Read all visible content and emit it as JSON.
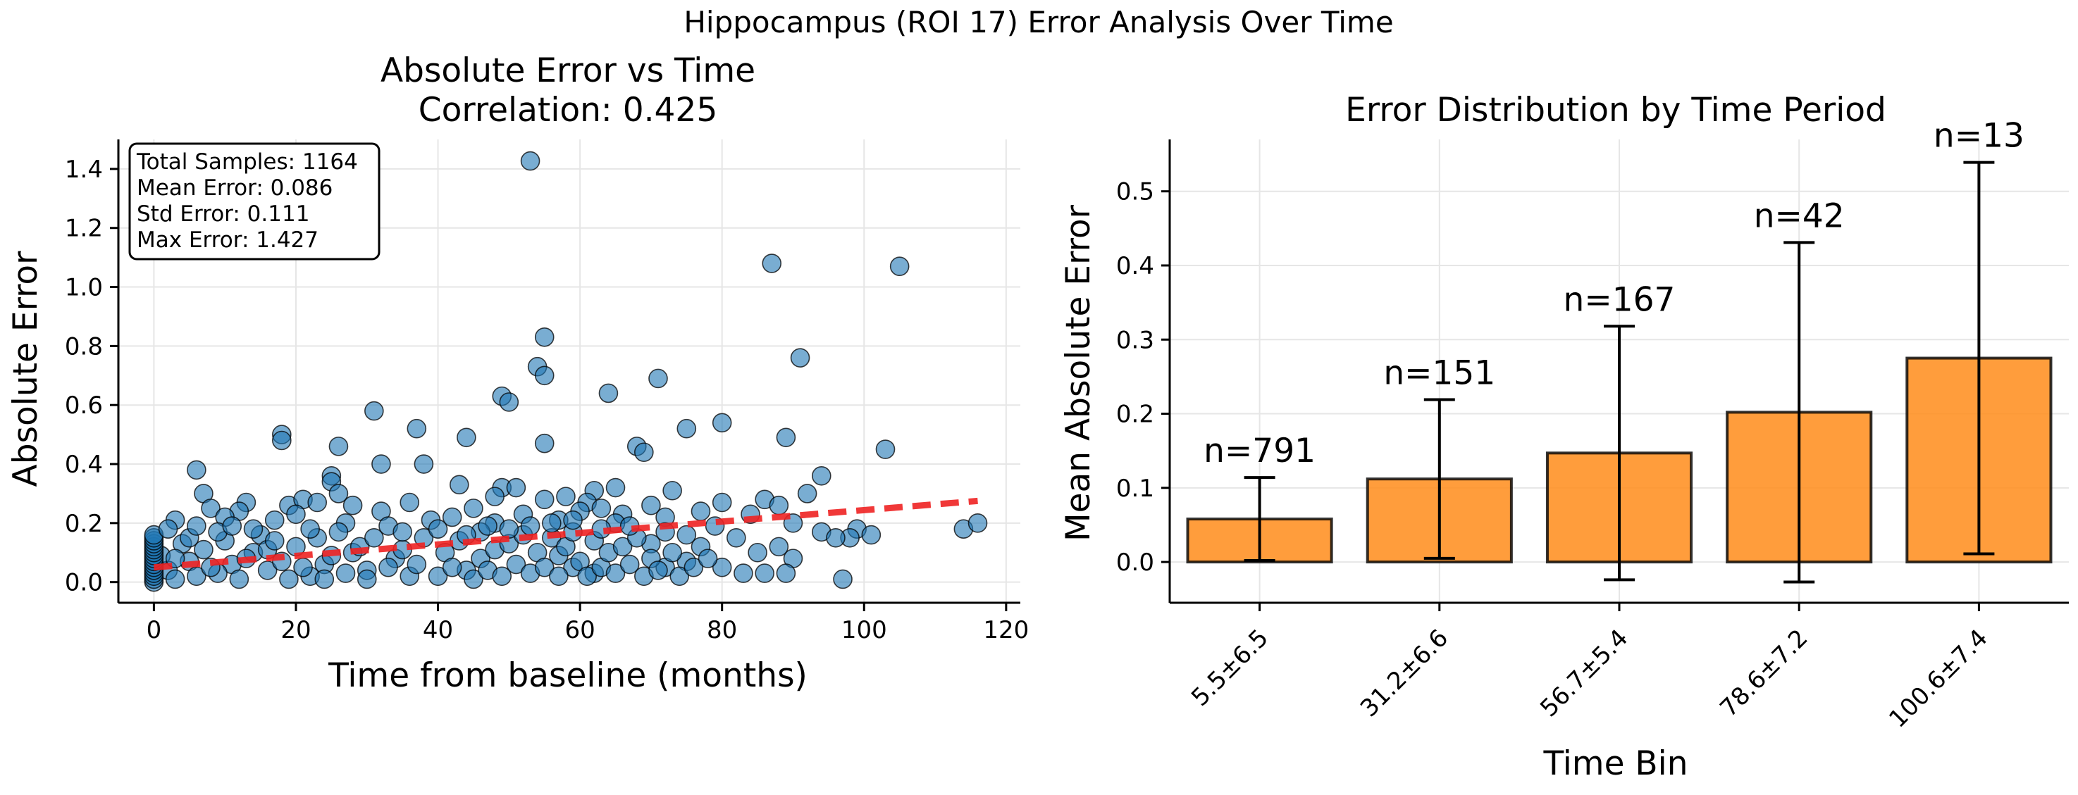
{
  "figure": {
    "suptitle": "Hippocampus (ROI 17) Error Analysis Over Time"
  },
  "colors": {
    "points": "#1f77b4",
    "trend": "#ee2222",
    "bars": "#ff8c1a",
    "bar_edge": "#000000",
    "error_bars": "#000000",
    "grid": "#e6e6e6"
  },
  "chart_data": [
    {
      "type": "scatter",
      "title": "Absolute Error vs Time",
      "subtitle": "Correlation: 0.425",
      "xlabel": "Time from baseline (months)",
      "ylabel": "Absolute Error",
      "xlim": [
        -5,
        122
      ],
      "ylim": [
        -0.07,
        1.5
      ],
      "xticks": [
        0,
        20,
        40,
        60,
        80,
        100,
        120
      ],
      "yticks": [
        0.0,
        0.2,
        0.4,
        0.6,
        0.8,
        1.0,
        1.2,
        1.4
      ],
      "grid": true,
      "stats_box": {
        "location": "top-left",
        "lines": [
          "Total Samples: 1164",
          "Mean Error: 0.086",
          "Std Error: 0.111",
          "Max Error: 1.427"
        ]
      },
      "trend_line": {
        "style": "dashed",
        "x": [
          0,
          116
        ],
        "y": [
          0.05,
          0.275
        ]
      },
      "points": [
        {
          "x": 53,
          "y": 1.427
        },
        {
          "x": 87,
          "y": 1.08
        },
        {
          "x": 105,
          "y": 1.07
        },
        {
          "x": 55,
          "y": 0.83
        },
        {
          "x": 91,
          "y": 0.76
        },
        {
          "x": 54,
          "y": 0.73
        },
        {
          "x": 55,
          "y": 0.7
        },
        {
          "x": 71,
          "y": 0.69
        },
        {
          "x": 64,
          "y": 0.64
        },
        {
          "x": 49,
          "y": 0.63
        },
        {
          "x": 50,
          "y": 0.61
        },
        {
          "x": 31,
          "y": 0.58
        },
        {
          "x": 80,
          "y": 0.54
        },
        {
          "x": 75,
          "y": 0.52
        },
        {
          "x": 37,
          "y": 0.52
        },
        {
          "x": 18,
          "y": 0.5
        },
        {
          "x": 18,
          "y": 0.48
        },
        {
          "x": 44,
          "y": 0.49
        },
        {
          "x": 89,
          "y": 0.49
        },
        {
          "x": 55,
          "y": 0.47
        },
        {
          "x": 26,
          "y": 0.46
        },
        {
          "x": 68,
          "y": 0.46
        },
        {
          "x": 69,
          "y": 0.44
        },
        {
          "x": 103,
          "y": 0.45
        },
        {
          "x": 32,
          "y": 0.4
        },
        {
          "x": 38,
          "y": 0.4
        },
        {
          "x": 6,
          "y": 0.38
        },
        {
          "x": 94,
          "y": 0.36
        },
        {
          "x": 25,
          "y": 0.36
        },
        {
          "x": 25,
          "y": 0.34
        },
        {
          "x": 43,
          "y": 0.33
        },
        {
          "x": 49,
          "y": 0.32
        },
        {
          "x": 51,
          "y": 0.32
        },
        {
          "x": 62,
          "y": 0.31
        },
        {
          "x": 65,
          "y": 0.32
        },
        {
          "x": 73,
          "y": 0.31
        },
        {
          "x": 7,
          "y": 0.3
        },
        {
          "x": 26,
          "y": 0.3
        },
        {
          "x": 48,
          "y": 0.29
        },
        {
          "x": 55,
          "y": 0.28
        },
        {
          "x": 58,
          "y": 0.29
        },
        {
          "x": 86,
          "y": 0.28
        },
        {
          "x": 92,
          "y": 0.3
        },
        {
          "x": 13,
          "y": 0.27
        },
        {
          "x": 19,
          "y": 0.26
        },
        {
          "x": 21,
          "y": 0.28
        },
        {
          "x": 23,
          "y": 0.27
        },
        {
          "x": 28,
          "y": 0.26
        },
        {
          "x": 36,
          "y": 0.27
        },
        {
          "x": 61,
          "y": 0.27
        },
        {
          "x": 70,
          "y": 0.26
        },
        {
          "x": 80,
          "y": 0.27
        },
        {
          "x": 88,
          "y": 0.26
        },
        {
          "x": 8,
          "y": 0.25
        },
        {
          "x": 12,
          "y": 0.24
        },
        {
          "x": 20,
          "y": 0.23
        },
        {
          "x": 32,
          "y": 0.24
        },
        {
          "x": 42,
          "y": 0.22
        },
        {
          "x": 45,
          "y": 0.25
        },
        {
          "x": 52,
          "y": 0.23
        },
        {
          "x": 60,
          "y": 0.24
        },
        {
          "x": 63,
          "y": 0.25
        },
        {
          "x": 66,
          "y": 0.23
        },
        {
          "x": 72,
          "y": 0.22
        },
        {
          "x": 77,
          "y": 0.24
        },
        {
          "x": 84,
          "y": 0.23
        },
        {
          "x": 3,
          "y": 0.21
        },
        {
          "x": 10,
          "y": 0.22
        },
        {
          "x": 17,
          "y": 0.21
        },
        {
          "x": 27,
          "y": 0.2
        },
        {
          "x": 39,
          "y": 0.21
        },
        {
          "x": 48,
          "y": 0.2
        },
        {
          "x": 57,
          "y": 0.21
        },
        {
          "x": 65,
          "y": 0.2
        },
        {
          "x": 79,
          "y": 0.19
        },
        {
          "x": 90,
          "y": 0.2
        },
        {
          "x": 94,
          "y": 0.17
        },
        {
          "x": 99,
          "y": 0.18
        },
        {
          "x": 98,
          "y": 0.15
        },
        {
          "x": 101,
          "y": 0.16
        },
        {
          "x": 114,
          "y": 0.18
        },
        {
          "x": 116,
          "y": 0.2
        },
        {
          "x": 82,
          "y": 0.15
        },
        {
          "x": 85,
          "y": 0.1
        },
        {
          "x": 88,
          "y": 0.12
        },
        {
          "x": 90,
          "y": 0.08
        },
        {
          "x": 96,
          "y": 0.15
        },
        {
          "x": 97,
          "y": 0.01
        },
        {
          "x": 86,
          "y": 0.03
        },
        {
          "x": 89,
          "y": 0.03
        },
        {
          "x": 80,
          "y": 0.05
        },
        {
          "x": 83,
          "y": 0.03
        },
        {
          "x": 75,
          "y": 0.07
        },
        {
          "x": 72,
          "y": 0.05
        },
        {
          "x": 70,
          "y": 0.13
        },
        {
          "x": 74,
          "y": 0.02
        },
        {
          "x": 62,
          "y": 0.03
        },
        {
          "x": 57,
          "y": 0.09
        },
        {
          "x": 59,
          "y": 0.05
        },
        {
          "x": 44,
          "y": 0.04
        },
        {
          "x": 46,
          "y": 0.08
        },
        {
          "x": 34,
          "y": 0.08
        },
        {
          "x": 36,
          "y": 0.02
        },
        {
          "x": 30,
          "y": 0.04
        },
        {
          "x": 28,
          "y": 0.1
        },
        {
          "x": 24,
          "y": 0.06
        },
        {
          "x": 22,
          "y": 0.02
        },
        {
          "x": 16,
          "y": 0.04
        },
        {
          "x": 14,
          "y": 0.1
        },
        {
          "x": 11,
          "y": 0.06
        },
        {
          "x": 9,
          "y": 0.03
        },
        {
          "x": 5,
          "y": 0.07
        },
        {
          "x": 4,
          "y": 0.13
        },
        {
          "x": 2,
          "y": 0.04
        },
        {
          "x": 1,
          "y": 0.09
        },
        {
          "x": 0,
          "y": 0.0
        },
        {
          "x": 0,
          "y": 0.01
        },
        {
          "x": 0,
          "y": 0.02
        },
        {
          "x": 0,
          "y": 0.03
        },
        {
          "x": 0,
          "y": 0.04
        },
        {
          "x": 0,
          "y": 0.05
        },
        {
          "x": 0,
          "y": 0.06
        },
        {
          "x": 0,
          "y": 0.07
        },
        {
          "x": 0,
          "y": 0.08
        },
        {
          "x": 0,
          "y": 0.09
        },
        {
          "x": 0,
          "y": 0.1
        },
        {
          "x": 0,
          "y": 0.11
        },
        {
          "x": 0,
          "y": 0.12
        },
        {
          "x": 0,
          "y": 0.13
        },
        {
          "x": 0,
          "y": 0.14
        },
        {
          "x": 0,
          "y": 0.15
        },
        {
          "x": 0,
          "y": 0.16
        },
        {
          "x": 3,
          "y": 0.01
        },
        {
          "x": 3,
          "y": 0.08
        },
        {
          "x": 5,
          "y": 0.15
        },
        {
          "x": 6,
          "y": 0.02
        },
        {
          "x": 7,
          "y": 0.11
        },
        {
          "x": 8,
          "y": 0.05
        },
        {
          "x": 10,
          "y": 0.14
        },
        {
          "x": 12,
          "y": 0.01
        },
        {
          "x": 13,
          "y": 0.08
        },
        {
          "x": 15,
          "y": 0.16
        },
        {
          "x": 16,
          "y": 0.11
        },
        {
          "x": 18,
          "y": 0.07
        },
        {
          "x": 19,
          "y": 0.01
        },
        {
          "x": 20,
          "y": 0.12
        },
        {
          "x": 21,
          "y": 0.05
        },
        {
          "x": 23,
          "y": 0.15
        },
        {
          "x": 24,
          "y": 0.01
        },
        {
          "x": 25,
          "y": 0.09
        },
        {
          "x": 26,
          "y": 0.17
        },
        {
          "x": 27,
          "y": 0.03
        },
        {
          "x": 29,
          "y": 0.12
        },
        {
          "x": 30,
          "y": 0.01
        },
        {
          "x": 31,
          "y": 0.15
        },
        {
          "x": 33,
          "y": 0.05
        },
        {
          "x": 35,
          "y": 0.11
        },
        {
          "x": 37,
          "y": 0.06
        },
        {
          "x": 38,
          "y": 0.15
        },
        {
          "x": 40,
          "y": 0.02
        },
        {
          "x": 41,
          "y": 0.1
        },
        {
          "x": 42,
          "y": 0.05
        },
        {
          "x": 43,
          "y": 0.14
        },
        {
          "x": 45,
          "y": 0.01
        },
        {
          "x": 46,
          "y": 0.17
        },
        {
          "x": 47,
          "y": 0.04
        },
        {
          "x": 48,
          "y": 0.11
        },
        {
          "x": 49,
          "y": 0.02
        },
        {
          "x": 50,
          "y": 0.13
        },
        {
          "x": 51,
          "y": 0.06
        },
        {
          "x": 52,
          "y": 0.16
        },
        {
          "x": 53,
          "y": 0.03
        },
        {
          "x": 54,
          "y": 0.1
        },
        {
          "x": 55,
          "y": 0.05
        },
        {
          "x": 56,
          "y": 0.15
        },
        {
          "x": 57,
          "y": 0.02
        },
        {
          "x": 58,
          "y": 0.12
        },
        {
          "x": 59,
          "y": 0.17
        },
        {
          "x": 60,
          "y": 0.07
        },
        {
          "x": 61,
          "y": 0.02
        },
        {
          "x": 62,
          "y": 0.14
        },
        {
          "x": 63,
          "y": 0.05
        },
        {
          "x": 64,
          "y": 0.1
        },
        {
          "x": 65,
          "y": 0.03
        },
        {
          "x": 66,
          "y": 0.12
        },
        {
          "x": 67,
          "y": 0.06
        },
        {
          "x": 68,
          "y": 0.15
        },
        {
          "x": 69,
          "y": 0.02
        },
        {
          "x": 70,
          "y": 0.08
        },
        {
          "x": 71,
          "y": 0.04
        },
        {
          "x": 73,
          "y": 0.1
        },
        {
          "x": 76,
          "y": 0.05
        },
        {
          "x": 77,
          "y": 0.12
        },
        {
          "x": 78,
          "y": 0.08
        },
        {
          "x": 2,
          "y": 0.18
        },
        {
          "x": 6,
          "y": 0.19
        },
        {
          "x": 9,
          "y": 0.17
        },
        {
          "x": 11,
          "y": 0.19
        },
        {
          "x": 14,
          "y": 0.18
        },
        {
          "x": 17,
          "y": 0.14
        },
        {
          "x": 22,
          "y": 0.18
        },
        {
          "x": 33,
          "y": 0.19
        },
        {
          "x": 35,
          "y": 0.17
        },
        {
          "x": 40,
          "y": 0.18
        },
        {
          "x": 44,
          "y": 0.16
        },
        {
          "x": 47,
          "y": 0.19
        },
        {
          "x": 50,
          "y": 0.18
        },
        {
          "x": 53,
          "y": 0.19
        },
        {
          "x": 56,
          "y": 0.2
        },
        {
          "x": 59,
          "y": 0.21
        },
        {
          "x": 63,
          "y": 0.18
        },
        {
          "x": 67,
          "y": 0.19
        },
        {
          "x": 72,
          "y": 0.17
        },
        {
          "x": 75,
          "y": 0.16
        }
      ]
    },
    {
      "type": "bar",
      "title": "Error Distribution by Time Period",
      "xlabel": "Time Bin",
      "ylabel": "Mean Absolute Error",
      "ylim": [
        -0.055,
        0.57
      ],
      "yticks": [
        0.0,
        0.1,
        0.2,
        0.3,
        0.4,
        0.5
      ],
      "grid": true,
      "categories": [
        "5.5±6.5",
        "31.2±6.6",
        "56.7±5.4",
        "78.6±7.2",
        "100.6±7.4"
      ],
      "values": [
        0.058,
        0.112,
        0.147,
        0.202,
        0.275
      ],
      "errors": [
        0.056,
        0.107,
        0.171,
        0.229,
        0.264
      ],
      "bar_labels": [
        "n=791",
        "n=151",
        "n=167",
        "n=42",
        "n=13"
      ]
    }
  ]
}
